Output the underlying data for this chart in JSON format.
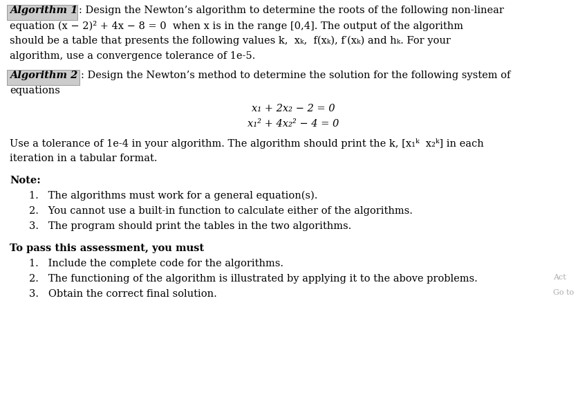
{
  "background_color": "#ffffff",
  "text_color": "#000000",
  "fig_width": 8.49,
  "fig_height": 5.84,
  "font_size": 10.5,
  "algo1_label": "Algorithm 1",
  "algo1_rest1": ": Design the Newton’s algorithm to determine the roots of the following non-linear",
  "algo1_line2": "equation (x − 2)² + 4x − 8 = 0  when x is in the range [0,4]. The output of the algorithm",
  "algo1_line3": "should be a table that presents the following values k,  xₖ,  f(xₖ), f′(xₖ) and hₖ. For your",
  "algo1_line4": "algorithm, use a convergence tolerance of 1e-5.",
  "algo2_label": "Algorithm 2",
  "algo2_rest1": ": Design the Newton’s method to determine the solution for the following system of",
  "algo2_line2": "equations",
  "eq1": "x₁ + 2x₂ − 2 = 0",
  "eq2": "x₁² + 4x₂² − 4 = 0",
  "para1": "Use a tolerance of 1e-4 in your algorithm. The algorithm should print the k, [x₁ᵏ  x₂ᵏ] in each",
  "para2": "iteration in a tabular format.",
  "note_title": "Note:",
  "note1": "1.   The algorithms must work for a general equation(s).",
  "note2": "2.   You cannot use a built-in function to calculate either of the algorithms.",
  "note3": "3.   The program should print the tables in the two algorithms.",
  "pass_title_bold": "To pass this assessment, you must",
  "pass_title_normal": ":",
  "pass1": "1.   Include the complete code for the algorithms.",
  "pass2": "2.   The functioning of the algorithm is illustrated by applying it to the above problems.",
  "pass3": "3.   Obtain the correct final solution.",
  "wm1": "Act",
  "wm2": "Go to"
}
